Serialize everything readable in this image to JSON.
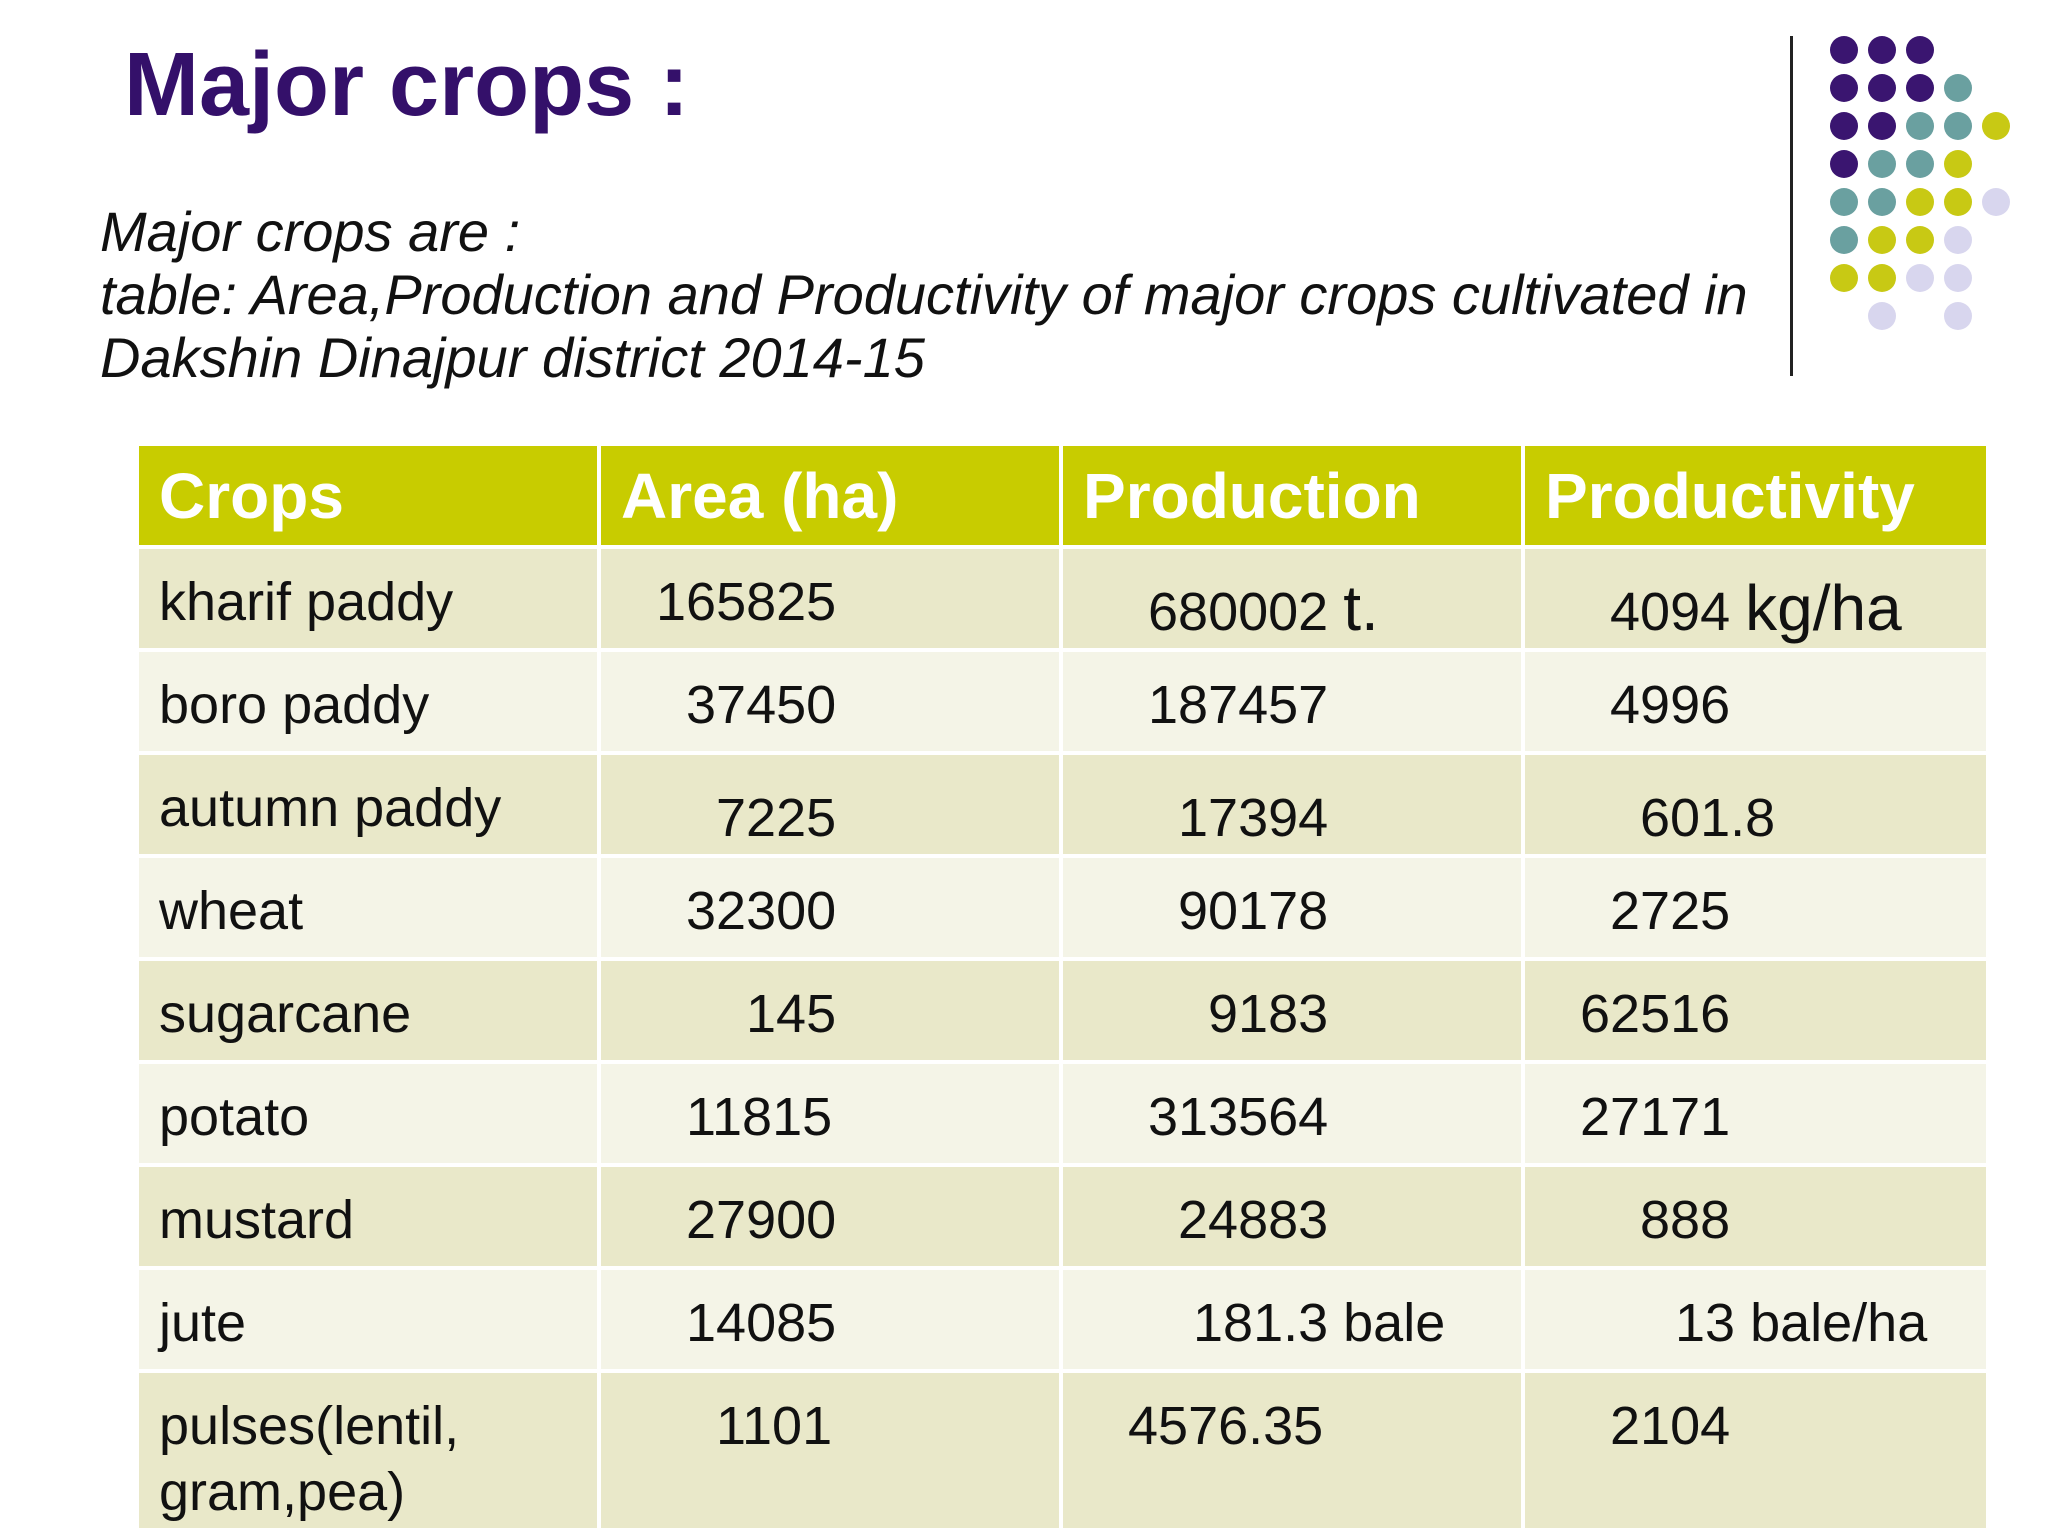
{
  "slide": {
    "title": "Major crops :",
    "subtitle_line1": "Major crops are :",
    "subtitle_line2": "table: Area,Production and Productivity of major crops cultivated in",
    "subtitle_line3": "Dakshin Dinajpur district 2014-15"
  },
  "table": {
    "headers": [
      "Crops",
      "Area (ha)",
      "Production",
      "Productivity"
    ],
    "rows": [
      {
        "crop": "kharif paddy",
        "area": "165825",
        "production": "680002",
        "production_unit": "t.",
        "productivity": "4094",
        "productivity_unit": "kg/ha"
      },
      {
        "crop": "boro paddy",
        "area": "37450",
        "production": "187457",
        "productivity": "4996"
      },
      {
        "crop": "autumn paddy",
        "area": "7225",
        "production": "17394",
        "productivity": "601.8"
      },
      {
        "crop": "wheat",
        "area": "32300",
        "production": "90178",
        "productivity": "2725"
      },
      {
        "crop": "sugarcane",
        "area": "145",
        "production": "9183",
        "productivity": "62516"
      },
      {
        "crop": "potato",
        "area": "11815",
        "production": "313564",
        "productivity": "27171"
      },
      {
        "crop": "mustard",
        "area": "27900",
        "production": "24883",
        "productivity": "888"
      },
      {
        "crop": "jute",
        "area": "14085",
        "production": "181.3 bale",
        "productivity": "13 bale/ha"
      },
      {
        "crop": "pulses(lentil,",
        "crop_line2": "gram,pea)",
        "area": "1101",
        "production": "4576.35",
        "productivity": "2104"
      }
    ]
  },
  "colors": {
    "title": "#34106a",
    "header_bg": "#c8cc00",
    "row_odd": "#e9e8c9",
    "row_even": "#f4f4e7",
    "dot_purple": "#3a1570",
    "dot_teal": "#6aa0a0",
    "dot_yellow": "#c8c914",
    "dot_lavender": "#d8d6ee"
  }
}
